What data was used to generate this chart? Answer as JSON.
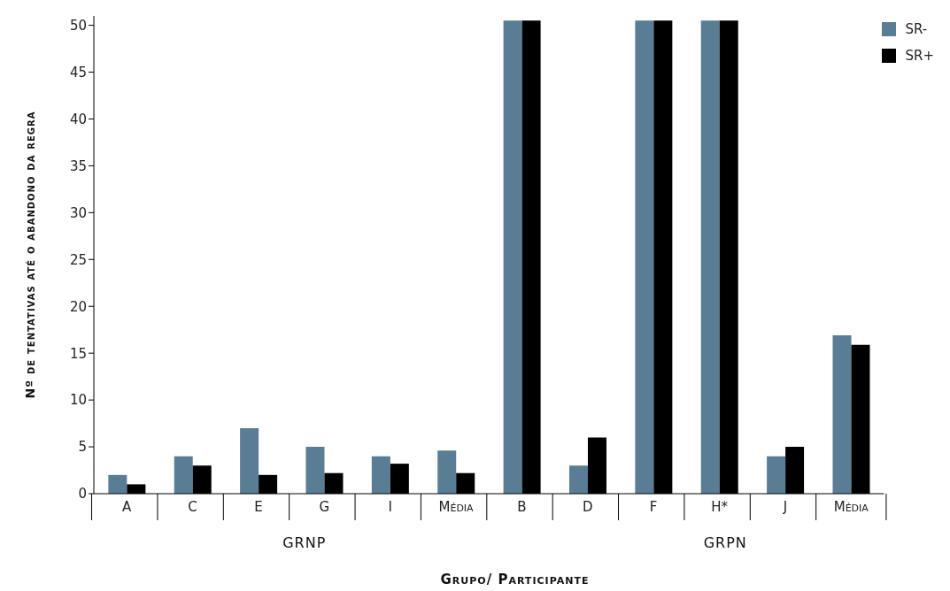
{
  "chart_data": {
    "type": "bar",
    "xlabel": "Grupo/ Participante",
    "ylabel": "Nº de tentativas até o abandono da regra",
    "categories": [
      "A",
      "C",
      "E",
      "G",
      "I",
      "Média",
      "B",
      "D",
      "F",
      "H*",
      "J",
      "Média"
    ],
    "series": [
      {
        "name": "SR-",
        "color": "#5a7d96",
        "values": [
          2,
          4,
          7,
          5,
          4,
          4.6,
          50.5,
          3,
          50.5,
          50.5,
          4,
          16.9
        ]
      },
      {
        "name": "SR+",
        "color": "#000000",
        "values": [
          1,
          3,
          2,
          2.2,
          3.2,
          2.2,
          50.5,
          6,
          50.5,
          50.5,
          5,
          15.9
        ]
      }
    ],
    "ylim": [
      0,
      51
    ],
    "yticks": [
      0,
      5,
      10,
      15,
      20,
      25,
      30,
      35,
      40,
      45,
      50
    ],
    "legend": "top right",
    "annotations": [
      "GRNP",
      "GRPN"
    ]
  }
}
